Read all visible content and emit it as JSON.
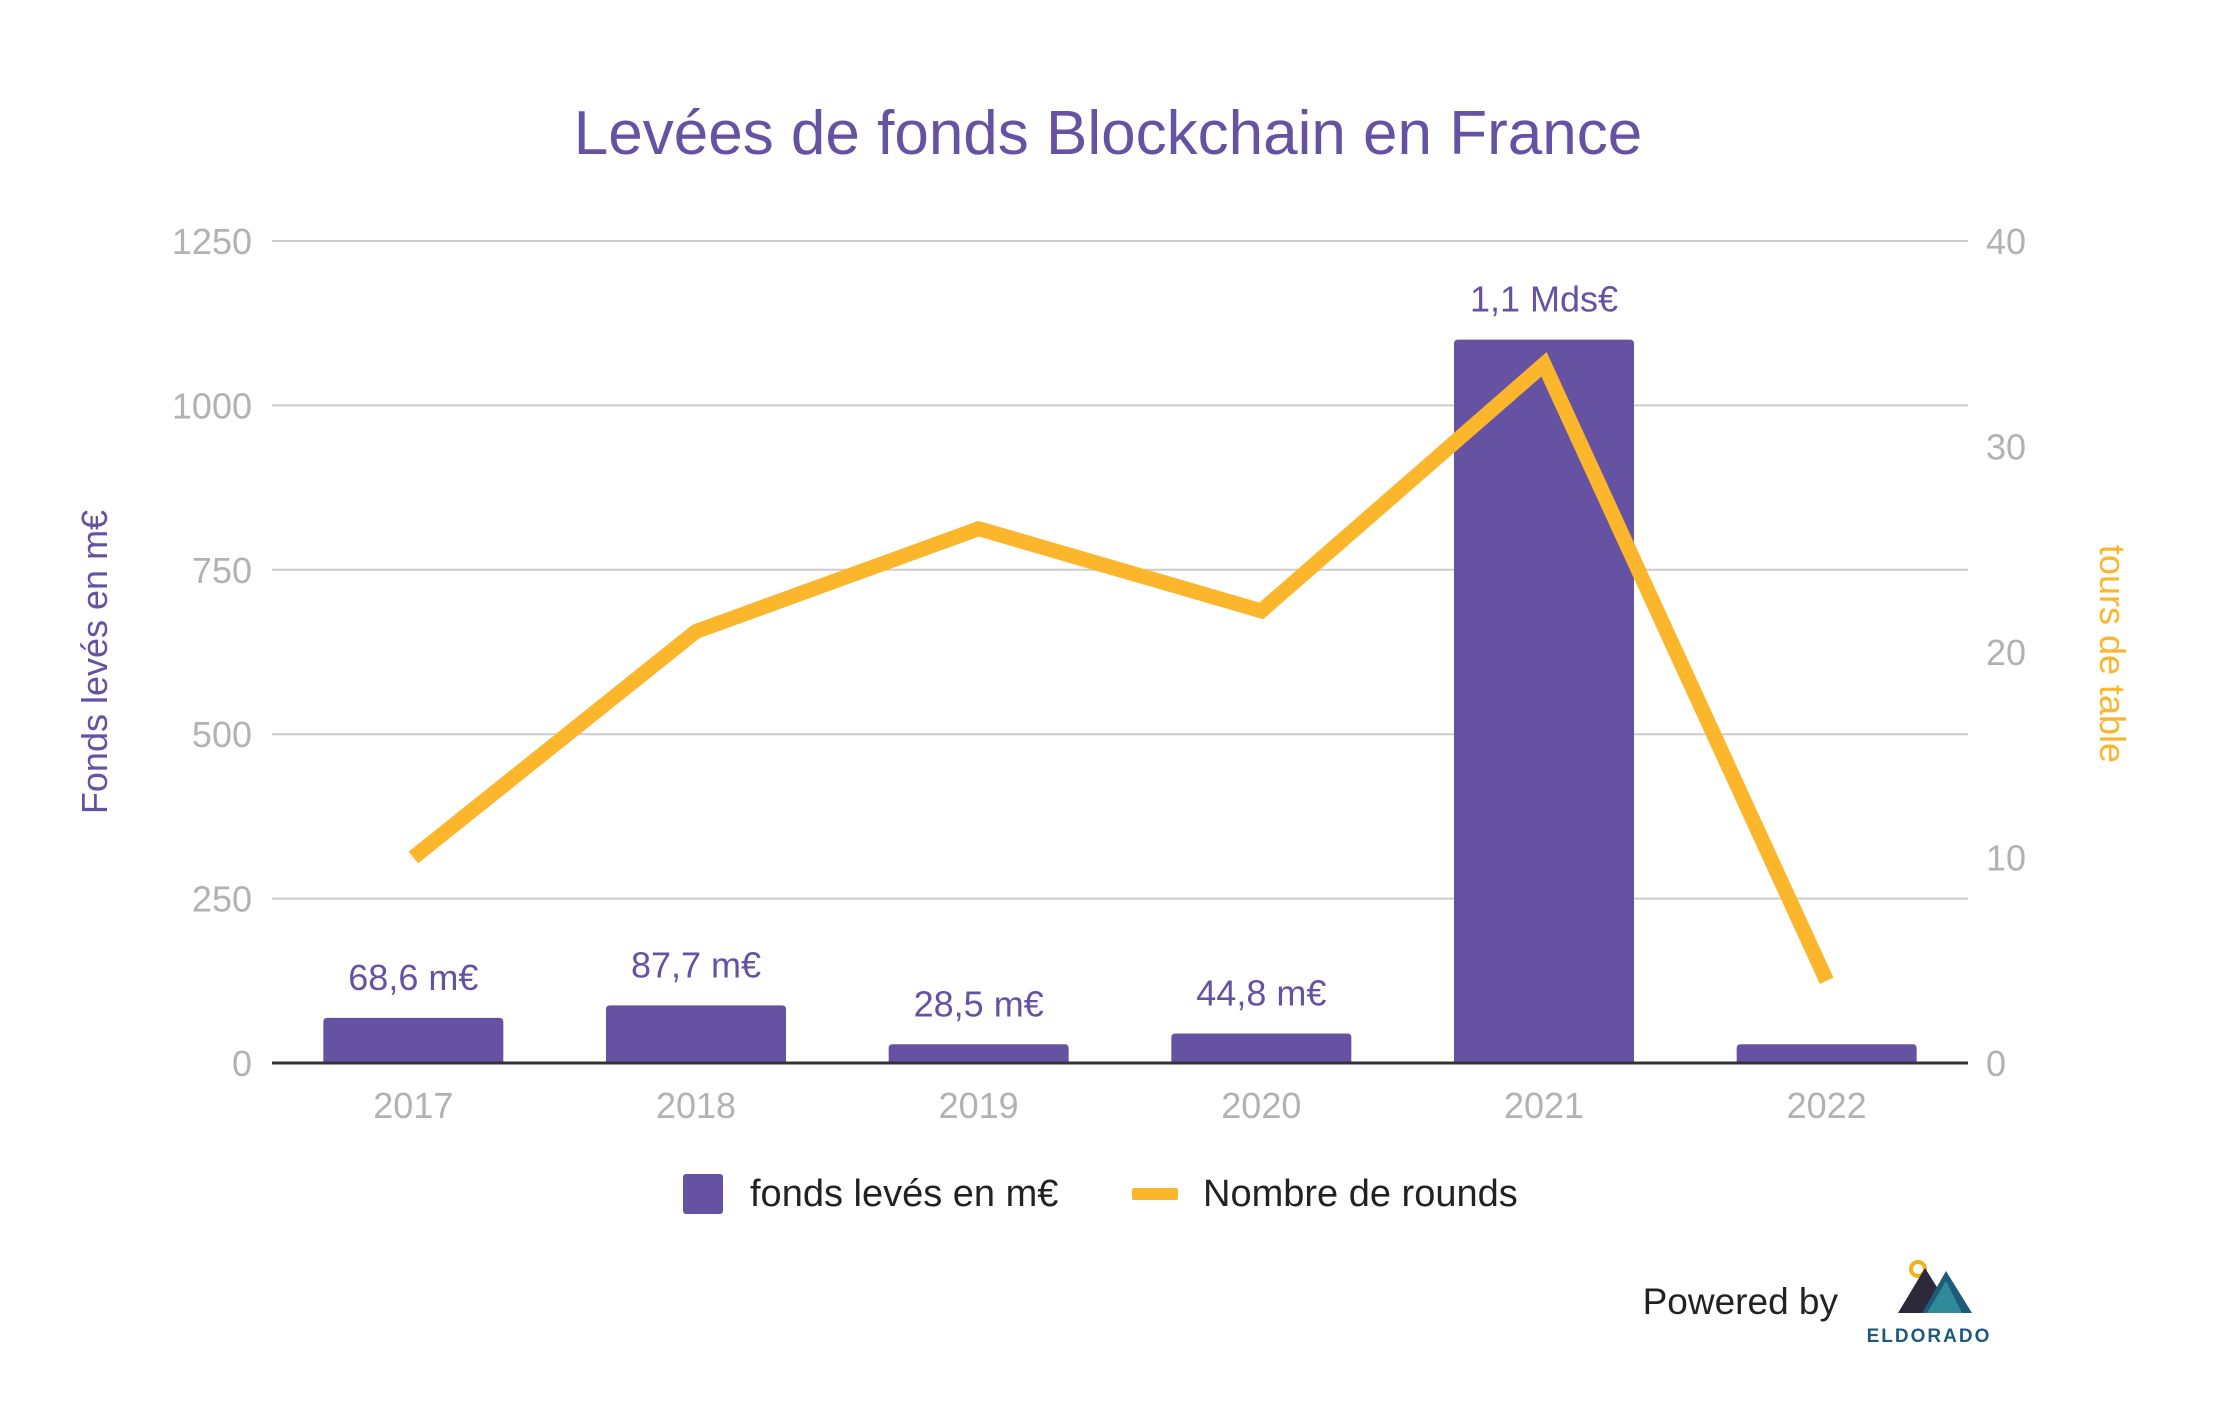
{
  "chart_data": {
    "type": "bar",
    "title": "Levées de fonds Blockchain en France",
    "categories": [
      "2017",
      "2018",
      "2019",
      "2020",
      "2021",
      "2022"
    ],
    "y_left": {
      "label": "Fonds levés en m€",
      "ticks": [
        "0",
        "250",
        "500",
        "750",
        "1000",
        "1250"
      ],
      "range": [
        0,
        1250
      ]
    },
    "y_right": {
      "label": "tours de table",
      "ticks": [
        "0",
        "10",
        "20",
        "30",
        "40"
      ],
      "range": [
        0,
        40
      ]
    },
    "series": [
      {
        "name": "fonds levés en m€",
        "type": "bar",
        "axis": "left",
        "color": "#6552a3",
        "values": [
          68.6,
          87.7,
          28.5,
          44.8,
          1100,
          28.5
        ],
        "data_labels": [
          "68,6 m€",
          "87,7 m€",
          "28,5 m€",
          "44,8 m€",
          "1,1 Mds€",
          ""
        ]
      },
      {
        "name": "Nombre de rounds",
        "type": "line",
        "axis": "right",
        "color": "#fbb62b",
        "values": [
          10,
          21,
          26,
          22,
          34,
          4
        ]
      }
    ],
    "grid": true,
    "legend_position": "bottom"
  },
  "colors": {
    "title": "#6552a3",
    "left_axis_label": "#6552a3",
    "right_axis_label": "#fbb62b",
    "tick_text": "#b2b2b2",
    "gridline": "#cccccc",
    "baseline": "#333333"
  },
  "branding": {
    "powered_by": "Powered by",
    "logo_text": "ELDORADO"
  }
}
